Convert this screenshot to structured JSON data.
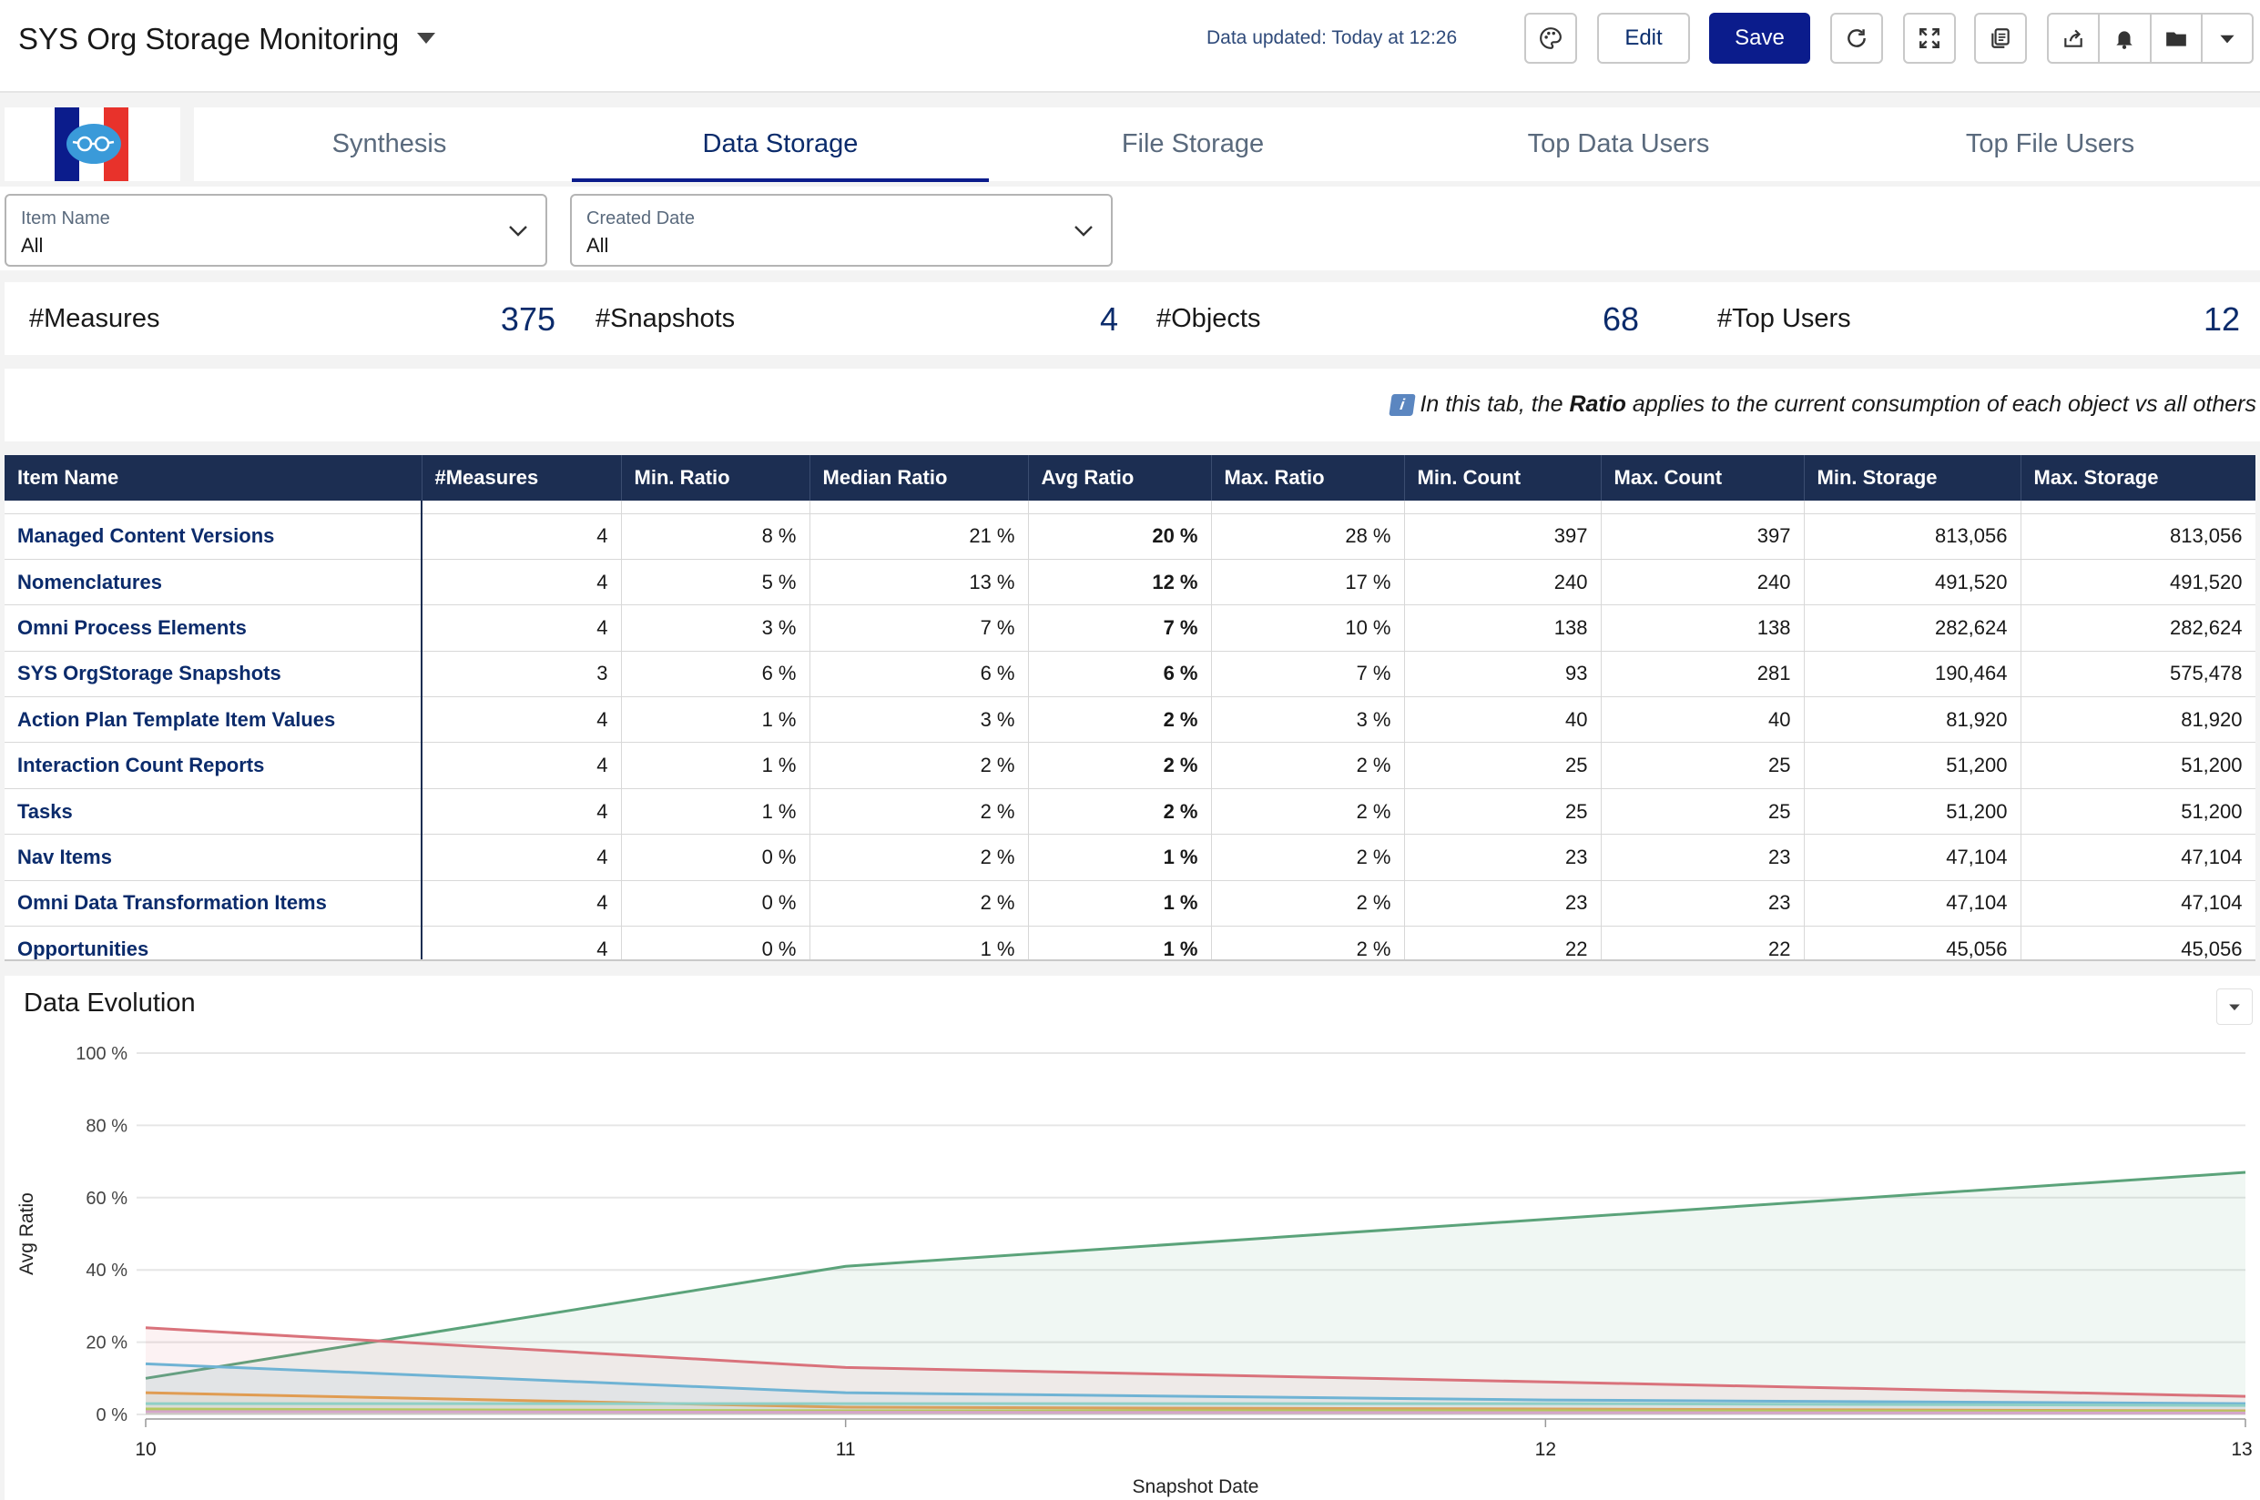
{
  "header": {
    "title": "SYS Org Storage Monitoring",
    "data_updated": "Data updated: Today at 12:26",
    "edit_label": "Edit",
    "save_label": "Save"
  },
  "tabs": [
    {
      "label": "Synthesis"
    },
    {
      "label": "Data Storage",
      "active": true
    },
    {
      "label": "File Storage"
    },
    {
      "label": "Top Data Users"
    },
    {
      "label": "Top File Users"
    }
  ],
  "filters": [
    {
      "label": "Item Name",
      "value": "All"
    },
    {
      "label": "Created Date",
      "value": "All"
    }
  ],
  "kpis": [
    {
      "label": "#Measures",
      "value": "375"
    },
    {
      "label": "#Snapshots",
      "value": "4"
    },
    {
      "label": "#Objects",
      "value": "68"
    },
    {
      "label": "#Top Users",
      "value": "12"
    }
  ],
  "info": {
    "badge": "i",
    "prefix": "In this tab, the ",
    "bold": "Ratio",
    "suffix": " applies to the current consumption of each object vs all others"
  },
  "table": {
    "columns": [
      "Item Name",
      "#Measures",
      "Min. Ratio",
      "Median Ratio",
      "Avg Ratio",
      "Max. Ratio",
      "Min. Count",
      "Max. Count",
      "Min. Storage",
      "Max. Storage"
    ],
    "rows": [
      [
        "Managed Content Versions",
        "4",
        "8 %",
        "21 %",
        "20 %",
        "28 %",
        "397",
        "397",
        "813,056",
        "813,056"
      ],
      [
        "Nomenclatures",
        "4",
        "5 %",
        "13 %",
        "12 %",
        "17 %",
        "240",
        "240",
        "491,520",
        "491,520"
      ],
      [
        "Omni Process Elements",
        "4",
        "3 %",
        "7 %",
        "7 %",
        "10 %",
        "138",
        "138",
        "282,624",
        "282,624"
      ],
      [
        "SYS OrgStorage Snapshots",
        "3",
        "6 %",
        "6 %",
        "6 %",
        "7 %",
        "93",
        "281",
        "190,464",
        "575,478"
      ],
      [
        "Action Plan Template Item Values",
        "4",
        "1 %",
        "3 %",
        "2 %",
        "3 %",
        "40",
        "40",
        "81,920",
        "81,920"
      ],
      [
        "Interaction Count Reports",
        "4",
        "1 %",
        "2 %",
        "2 %",
        "2 %",
        "25",
        "25",
        "51,200",
        "51,200"
      ],
      [
        "Tasks",
        "4",
        "1 %",
        "2 %",
        "2 %",
        "2 %",
        "25",
        "25",
        "51,200",
        "51,200"
      ],
      [
        "Nav Items",
        "4",
        "0 %",
        "2 %",
        "1 %",
        "2 %",
        "23",
        "23",
        "47,104",
        "47,104"
      ],
      [
        "Omni Data Transformation Items",
        "4",
        "0 %",
        "2 %",
        "1 %",
        "2 %",
        "23",
        "23",
        "47,104",
        "47,104"
      ],
      [
        "Opportunities",
        "4",
        "0 %",
        "1 %",
        "1 %",
        "2 %",
        "22",
        "22",
        "45,056",
        "45,056"
      ]
    ]
  },
  "chart_data": {
    "type": "area",
    "title": "Data Evolution",
    "xlabel": "Snapshot Date",
    "ylabel": "Avg Ratio",
    "x": [
      "10",
      "11",
      "12",
      "13"
    ],
    "ylim": [
      0,
      100
    ],
    "yticks": [
      "0 %",
      "20 %",
      "40 %",
      "60 %",
      "80 %",
      "100 %"
    ],
    "grid": true,
    "series": [
      {
        "color": "#5ba37a",
        "values": [
          10,
          41,
          54,
          67
        ]
      },
      {
        "color": "#d9727b",
        "values": [
          24,
          13,
          9,
          5
        ]
      },
      {
        "color": "#6fb3d4",
        "values": [
          14,
          6,
          4,
          3
        ]
      },
      {
        "color": "#e09c52",
        "values": [
          6,
          2,
          1.5,
          1
        ]
      },
      {
        "color": "#8fcfc6",
        "values": [
          3,
          3,
          3,
          2.5
        ]
      },
      {
        "color": "#b5c95f",
        "values": [
          1.5,
          1,
          1,
          0.8
        ]
      },
      {
        "color": "#d4a6c9",
        "values": [
          0.8,
          0.6,
          0.5,
          0.4
        ]
      }
    ]
  }
}
